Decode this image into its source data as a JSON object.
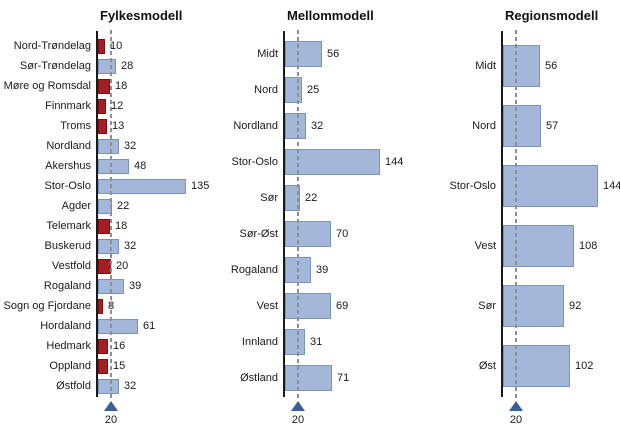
{
  "figure": {
    "background": "#ffffff"
  },
  "threshold": {
    "label": "20",
    "value": 20,
    "marker": "triangle-up"
  },
  "colors": {
    "bar_fill": "#a3b7d9",
    "bar_border": "#7b93c0",
    "bar_below_threshold_fill": "#a41e24",
    "bar_below_threshold_border": "#7a1015",
    "axis_line": "#1a1a1a",
    "reference_line": "#8f8f8f",
    "threshold_marker": "#3a5f9b",
    "text": "#1a1a1a"
  },
  "chart_data": [
    {
      "type": "bar",
      "orientation": "horizontal",
      "title": "Fylkesmodell",
      "categories": [
        "Nord-Trøndelag",
        "Sør-Trøndelag",
        "Møre og Romsdal",
        "Finnmark",
        "Troms",
        "Nordland",
        "Akershus",
        "Stor-Oslo",
        "Agder",
        "Telemark",
        "Buskerud",
        "Vestfold",
        "Rogaland",
        "Sogn og Fjordane",
        "Hordaland",
        "Hedmark",
        "Oppland",
        "Østfold"
      ],
      "values": [
        10,
        28,
        18,
        12,
        13,
        32,
        48,
        135,
        22,
        18,
        32,
        20,
        39,
        8,
        61,
        16,
        15,
        32
      ],
      "reference_line": 20,
      "color_rule": "dark red if value <= 20, light blue otherwise",
      "data_labels": true,
      "xlim": [
        0,
        150
      ],
      "grid": false,
      "legend": "none"
    },
    {
      "type": "bar",
      "orientation": "horizontal",
      "title": "Mellommodell",
      "categories": [
        "Midt",
        "Nord",
        "Nordland",
        "Stor-Oslo",
        "Sør",
        "Sør-Øst",
        "Rogaland",
        "Vest",
        "Innland",
        "Østland"
      ],
      "values": [
        56,
        25,
        32,
        144,
        22,
        70,
        39,
        69,
        31,
        71
      ],
      "reference_line": 20,
      "data_labels": true,
      "xlim": [
        0,
        150
      ],
      "grid": false,
      "legend": "none"
    },
    {
      "type": "bar",
      "orientation": "horizontal",
      "title": "Regionsmodell",
      "categories": [
        "Midt",
        "Nord",
        "Stor-Oslo",
        "Vest",
        "Sør",
        "Øst"
      ],
      "values": [
        56,
        57,
        144,
        108,
        92,
        102
      ],
      "reference_line": 20,
      "data_labels": true,
      "xlim": [
        0,
        150
      ],
      "grid": false,
      "legend": "none"
    }
  ]
}
